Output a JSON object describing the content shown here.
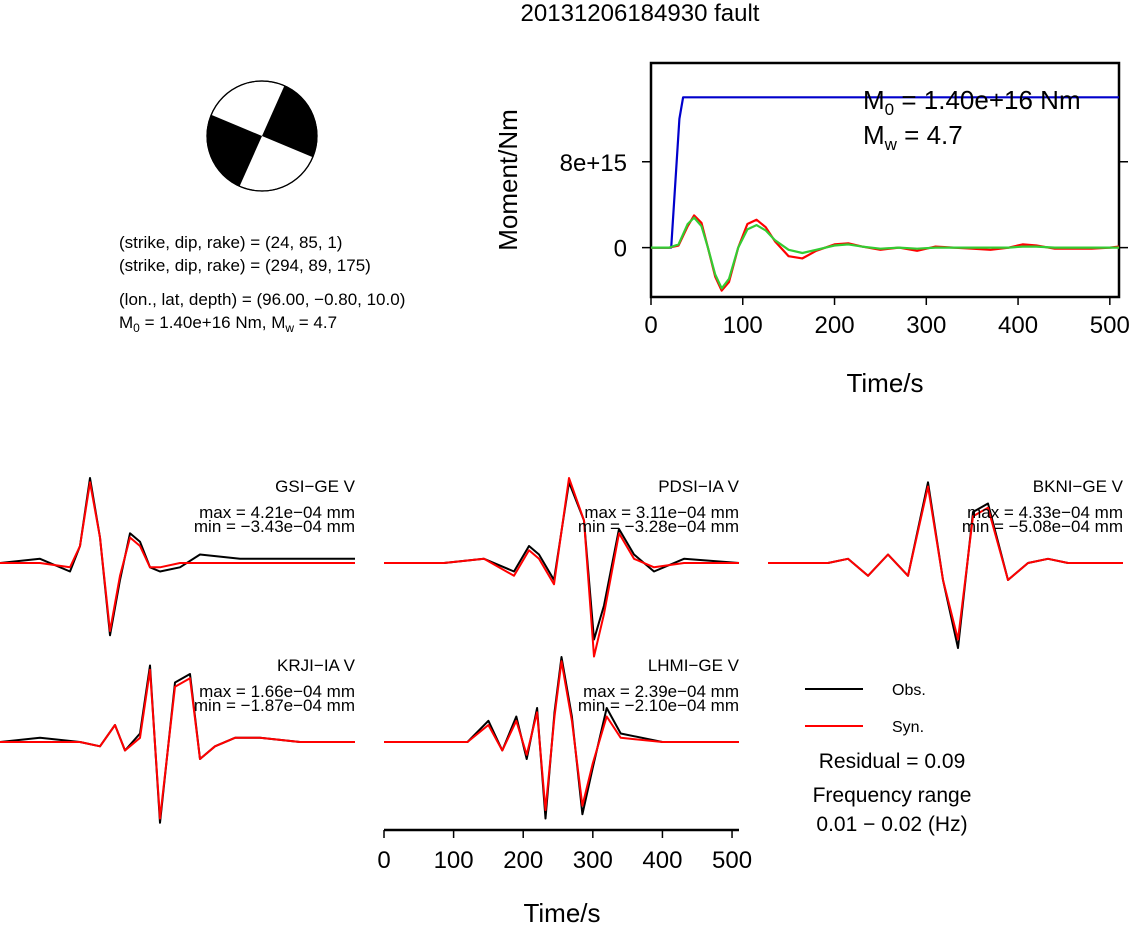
{
  "figure": {
    "title": "20131206184930 fault"
  },
  "mechanism": {
    "beachball_icon": "focal-mechanism-beachball",
    "line1": "(strike, dip, rake) = (24, 85, 1)",
    "line2": "(strike, dip, rake) = (294, 89, 175)",
    "line3": "(lon., lat, depth) = (96.00, −0.80, 10.0)",
    "m0_prefix": "M",
    "m0_sub": "0",
    "m0_rest": " = 1.40e+16 Nm, M",
    "mw_sub": "w",
    "mw_rest": " = 4.7"
  },
  "chart_data": [
    {
      "type": "line",
      "ylabel": "Moment/Nm",
      "xlabel": "Time/s",
      "xlim": [
        0,
        510
      ],
      "ylim": [
        -4600000000000000.0,
        1.72e+16
      ],
      "x_ticks": [
        0,
        100,
        200,
        300,
        400,
        500
      ],
      "y_ticks": [
        0,
        8000000000000000.0
      ],
      "y_tick_labels": [
        "0",
        "8e+15"
      ],
      "annotation_m0": {
        "prefix": "M",
        "sub": "0",
        "rest": " = 1.40e+16 Nm"
      },
      "annotation_mw": {
        "prefix": "M",
        "sub": "w",
        "rest": " = 4.7"
      },
      "series": [
        {
          "color": "#0000cc",
          "x": [
            0,
            22,
            31,
            35,
            510
          ],
          "y": [
            0,
            0,
            1.2e+16,
            1.4e+16,
            1.4e+16
          ]
        },
        {
          "color": "#ff0000",
          "x": [
            0,
            20,
            30,
            40,
            47,
            55,
            62,
            70,
            77,
            85,
            95,
            105,
            115,
            125,
            135,
            150,
            165,
            180,
            200,
            215,
            230,
            250,
            270,
            290,
            310,
            330,
            350,
            370,
            390,
            405,
            420,
            440,
            460,
            480,
            500,
            510
          ],
          "y": [
            0,
            0,
            200000000000000.0,
            2000000000000000.0,
            3000000000000000.0,
            2300000000000000.0,
            0,
            -2700000000000000.0,
            -4000000000000000.0,
            -3200000000000000.0,
            0,
            2200000000000000.0,
            2600000000000000.0,
            1900000000000000.0,
            600000000000000.0,
            -800000000000000.0,
            -1000000000000000.0,
            -300000000000000.0,
            300000000000000.0,
            400000000000000.0,
            100000000000000.0,
            -200000000000000.0,
            0,
            -300000000000000.0,
            100000000000000.0,
            0,
            -100000000000000.0,
            -200000000000000.0,
            0,
            300000000000000.0,
            200000000000000.0,
            -100000000000000.0,
            -100000000000000.0,
            -100000000000000.0,
            0,
            100000000000000.0
          ]
        },
        {
          "color": "#33cc33",
          "x": [
            0,
            20,
            30,
            40,
            47,
            55,
            62,
            70,
            77,
            85,
            95,
            105,
            115,
            125,
            135,
            150,
            165,
            180,
            200,
            215,
            230,
            250,
            270,
            290,
            310,
            330,
            350,
            370,
            390,
            405,
            420,
            440,
            460,
            480,
            500,
            510
          ],
          "y": [
            0,
            0,
            300000000000000.0,
            2200000000000000.0,
            2800000000000000.0,
            2000000000000000.0,
            0,
            -2500000000000000.0,
            -3800000000000000.0,
            -2900000000000000.0,
            0,
            1700000000000000.0,
            2100000000000000.0,
            1600000000000000.0,
            700000000000000.0,
            -200000000000000.0,
            -500000000000000.0,
            -200000000000000.0,
            200000000000000.0,
            300000000000000.0,
            100000000000000.0,
            -100000000000000.0,
            0,
            -100000000000000.0,
            0,
            0,
            0,
            0,
            0,
            100000000000000.0,
            100000000000000.0,
            0,
            0,
            0,
            0,
            0
          ]
        }
      ]
    },
    {
      "type": "line",
      "xlabel": "Time/s",
      "xlim": [
        0,
        510
      ],
      "x_ticks": [
        0,
        100,
        200,
        300,
        400,
        500
      ],
      "stations": [
        {
          "label": "GSI−GE V",
          "max": "max = 4.21e−04 mm",
          "min": "min = −3.43e−04 mm",
          "x": [
            0,
            40,
            70,
            80,
            90,
            100,
            110,
            120,
            130,
            140,
            150,
            160,
            180,
            200,
            240,
            300,
            355
          ],
          "obs": [
            0,
            0.05,
            -0.1,
            0.2,
            1.0,
            0.3,
            -0.85,
            -0.2,
            0.35,
            0.25,
            -0.05,
            -0.1,
            -0.05,
            0.1,
            0.05,
            0.05,
            0.05
          ],
          "syn": [
            0,
            0,
            -0.05,
            0.2,
            0.95,
            0.3,
            -0.8,
            -0.15,
            0.3,
            0.2,
            -0.05,
            -0.05,
            0,
            0,
            0,
            0,
            0
          ]
        },
        {
          "label": "PDSI−IA V",
          "max": "max = 3.11e−04 mm",
          "min": "min = −3.28e−04 mm",
          "x": [
            0,
            60,
            100,
            130,
            145,
            155,
            170,
            185,
            200,
            210,
            220,
            235,
            250,
            270,
            300,
            355
          ],
          "obs": [
            0,
            0,
            0.05,
            -0.1,
            0.2,
            0.1,
            -0.2,
            0.95,
            0.5,
            -0.9,
            -0.5,
            0.4,
            0.1,
            -0.1,
            0.05,
            0
          ],
          "syn": [
            0,
            0,
            0.05,
            -0.15,
            0.15,
            0.05,
            -0.25,
            1.0,
            0.5,
            -1.1,
            -0.6,
            0.35,
            0.05,
            -0.05,
            0,
            0
          ]
        },
        {
          "label": "BKNI−GE V",
          "max": "max = 4.33e−04 mm",
          "min": "min = −5.08e−04 mm",
          "x": [
            0,
            60,
            80,
            100,
            120,
            140,
            160,
            175,
            190,
            205,
            220,
            240,
            260,
            280,
            300,
            355
          ],
          "obs": [
            0,
            0,
            0.05,
            -0.15,
            0.1,
            -0.15,
            0.95,
            -0.2,
            -1.0,
            0.6,
            0.7,
            -0.2,
            0.0,
            0.05,
            0,
            0
          ],
          "syn": [
            0,
            0,
            0.05,
            -0.15,
            0.1,
            -0.15,
            0.9,
            -0.2,
            -0.9,
            0.55,
            0.65,
            -0.2,
            0.0,
            0.05,
            0,
            0
          ]
        },
        {
          "label": "KRJI−IA V",
          "max": "max = 1.66e−04 mm",
          "min": "min = −1.87e−04 mm",
          "x": [
            0,
            40,
            80,
            100,
            115,
            125,
            140,
            150,
            160,
            175,
            190,
            200,
            215,
            235,
            260,
            300,
            355
          ],
          "obs": [
            0,
            0.05,
            0,
            -0.05,
            0.2,
            -0.1,
            0.1,
            0.9,
            -0.95,
            0.7,
            0.8,
            -0.2,
            -0.05,
            0.05,
            0.05,
            0,
            0
          ],
          "syn": [
            0,
            0,
            0,
            -0.05,
            0.2,
            -0.1,
            0.05,
            0.85,
            -0.9,
            0.65,
            0.75,
            -0.2,
            -0.05,
            0.05,
            0.05,
            0,
            0
          ]
        },
        {
          "label": "LHMI−GE V",
          "max": "max = 2.39e−04 mm",
          "min": "min = −2.10e−04 mm",
          "x": [
            0,
            60,
            120,
            150,
            170,
            190,
            205,
            220,
            232,
            245,
            255,
            270,
            285,
            300,
            320,
            340,
            400,
            450,
            510
          ],
          "obs": [
            0,
            0,
            0,
            0.25,
            -0.1,
            0.3,
            -0.2,
            0.4,
            -0.9,
            0.35,
            1.0,
            0.3,
            -0.85,
            -0.3,
            0.4,
            0.1,
            0,
            0,
            0
          ],
          "syn": [
            0,
            0,
            0,
            0.2,
            -0.1,
            0.25,
            -0.15,
            0.35,
            -0.8,
            0.3,
            0.95,
            0.25,
            -0.75,
            -0.25,
            0.3,
            0.05,
            0,
            0,
            0
          ]
        }
      ]
    }
  ],
  "legend": {
    "obs_label": "Obs.",
    "syn_label": "Syn.",
    "obs_color": "#000000",
    "syn_color": "#ff0000",
    "residual": "Residual = 0.09",
    "freq_title": "Frequency range",
    "freq_value": "0.01 − 0.02 (Hz)"
  }
}
